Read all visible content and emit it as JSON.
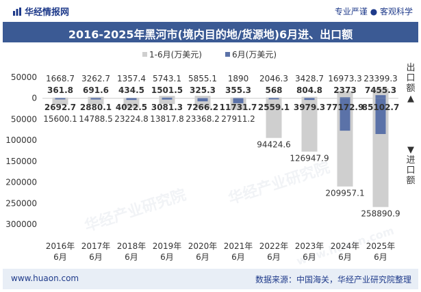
{
  "header": {
    "brand": "华经情报网",
    "tagline": "专业严谨 ● 客观科学"
  },
  "watermarks": [
    "华经产业研究院",
    "华经产业研究院",
    "www.huaon.com"
  ],
  "footer": {
    "website": "www.huaon.com",
    "source": "数据来源：中国海关，华经产业研究院整理"
  },
  "side_labels": {
    "export": "出口额",
    "export_arrow": "▲",
    "import_arrow": "▼",
    "import": "进口额"
  },
  "colors": {
    "series1": "#cfcfcf",
    "series2": "#5b72a8",
    "title_bg": "#3b5a94",
    "brand": "#1e3a8a"
  },
  "chart_data": {
    "type": "bar",
    "title": "2016-2025年黑河市(境内目的地/货源地)6月进、出口额",
    "categories": [
      "2016年\n6月",
      "2017年\n6月",
      "2018年\n6月",
      "2019年\n6月",
      "2020年\n6月",
      "2021年\n6月",
      "2022年\n6月",
      "2023年\n6月",
      "2024年\n6月",
      "2025年\n6月"
    ],
    "ylim": [
      -300000,
      50000
    ],
    "yticks": [
      50000,
      0,
      -50000,
      -100000,
      -150000,
      -200000,
      -250000,
      -300000
    ],
    "ytick_labels": [
      "50000",
      "0",
      "50000",
      "100000",
      "150000",
      "200000",
      "250000",
      "300000"
    ],
    "legend": [
      "1-6月(万美元)",
      "6月(万美元)"
    ],
    "series": [
      {
        "name": "1-6月(万美元)",
        "export": [
          1668.7,
          3262.7,
          1357.4,
          5743.1,
          5855.1,
          1890,
          2046.3,
          3428.7,
          16973.3,
          23399.3
        ],
        "import": [
          15600.1,
          14788.5,
          23224.8,
          13817.8,
          23368.2,
          27911.2,
          94424.6,
          126947.9,
          209957.1,
          258890.9
        ],
        "export_labels": [
          "1668.7",
          "3262.7",
          "1357.4",
          "5743.1",
          "5855.1",
          "1890",
          "2046.3",
          "3428.7",
          "16973.3",
          "23399.3"
        ],
        "import_labels": [
          "15600.1",
          "14788.5",
          "23224.8",
          "13817.8",
          "23368.2",
          "27911.2",
          "94424.6",
          "126947.9",
          "209957.1",
          "258890.9"
        ]
      },
      {
        "name": "6月(万美元)",
        "export": [
          361.8,
          691.6,
          434.5,
          1501.5,
          325.3,
          355.3,
          568,
          804.8,
          2373,
          7455.3
        ],
        "import": [
          2692.7,
          2880.1,
          4022.5,
          3081.3,
          7266.2,
          11731.7,
          2559.1,
          3979.3,
          77172.9,
          85102.7
        ],
        "export_labels": [
          "361.8",
          "691.6",
          "434.5",
          "1501.5",
          "325.3",
          "355.3",
          "568",
          "804.8",
          "2373",
          "7455.3"
        ],
        "import_labels": [
          "2692.7",
          "2880.1",
          "4022.5",
          "3081.3",
          "7266.2",
          "11731.7",
          "2559.1",
          "3979.3",
          "77172.9",
          "85102.7"
        ]
      }
    ]
  }
}
